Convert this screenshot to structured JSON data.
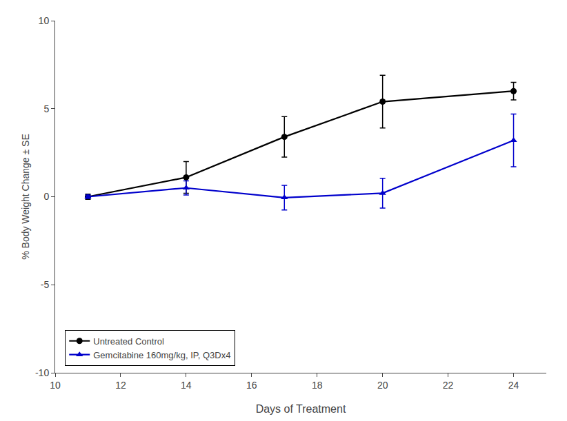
{
  "chart_data": {
    "type": "line",
    "x": [
      11,
      14,
      17,
      20,
      24
    ],
    "series": [
      {
        "name": "Untreated Control",
        "color": "#000000",
        "marker": "circle",
        "values": [
          0.0,
          1.1,
          3.4,
          5.4,
          6.0
        ],
        "errors": [
          0.15,
          0.9,
          1.15,
          1.5,
          0.5
        ]
      },
      {
        "name": "Gemcitabine 160mg/kg, IP, Q3Dx4",
        "color": "#0000cc",
        "marker": "triangle-up",
        "values": [
          0.0,
          0.5,
          -0.05,
          0.2,
          3.2
        ],
        "errors": [
          0.1,
          0.4,
          0.7,
          0.85,
          1.5
        ]
      }
    ],
    "xlabel": "Days of Treatment",
    "ylabel": "% Body Weight Change ± SE",
    "xlim": [
      10,
      25
    ],
    "ylim": [
      -10,
      10
    ],
    "xticks": [
      10,
      12,
      14,
      16,
      18,
      20,
      22,
      24
    ],
    "yticks": [
      -10,
      -5,
      0,
      5,
      10
    ],
    "grid": false,
    "legend": "lower left"
  }
}
